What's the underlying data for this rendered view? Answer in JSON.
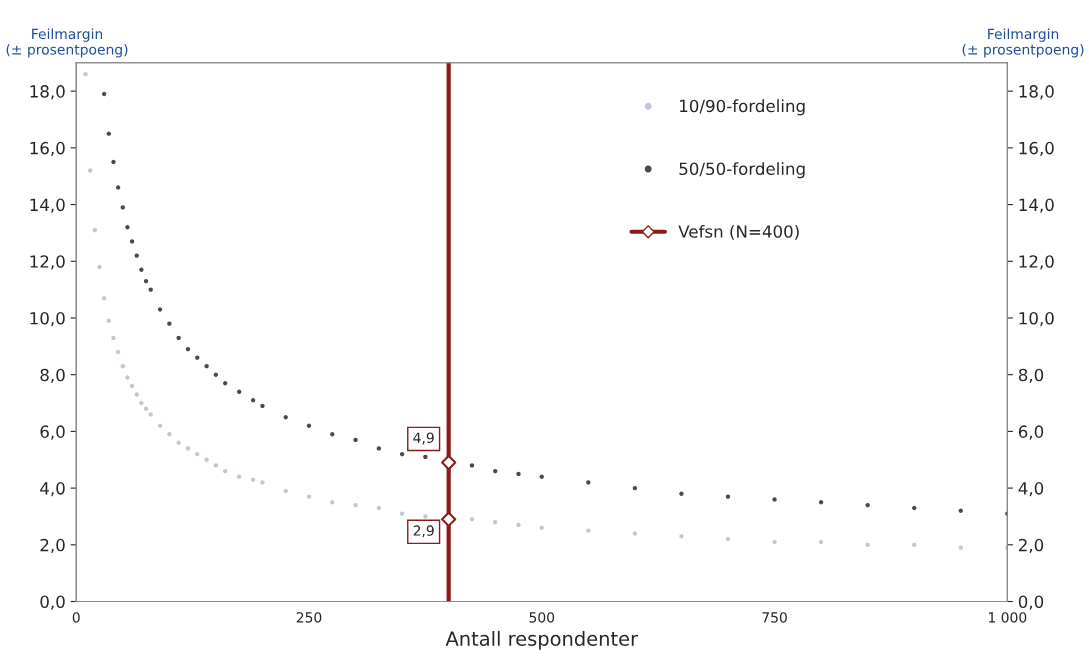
{
  "chart_data": {
    "type": "scatter",
    "xlabel": "Antall respondenter",
    "ylabel": "Feilmargin\n(± prosentpoeng)",
    "y2label": "Feilmargin\n(± prosentpoeng)",
    "xlim": [
      0,
      1000
    ],
    "xticks": [
      0,
      250,
      500,
      750,
      {
        "value": 1000,
        "label": "1 000"
      }
    ],
    "ylim": [
      0,
      19
    ],
    "yticks": [
      {
        "value": 0,
        "label": "0,0"
      },
      {
        "value": 2,
        "label": "2,0"
      },
      {
        "value": 4,
        "label": "4,0"
      },
      {
        "value": 6,
        "label": "6,0"
      },
      {
        "value": 8,
        "label": "8,0"
      },
      {
        "value": 10,
        "label": "10,0"
      },
      {
        "value": 12,
        "label": "12,0"
      },
      {
        "value": 14,
        "label": "14,0"
      },
      {
        "value": 16,
        "label": "16,0"
      },
      {
        "value": 18,
        "label": "18,0"
      }
    ],
    "y2lim": [
      0,
      19
    ],
    "y2ticks": [
      {
        "value": 0,
        "label": "0,0"
      },
      {
        "value": 2,
        "label": "2,0"
      },
      {
        "value": 4,
        "label": "4,0"
      },
      {
        "value": 6,
        "label": "6,0"
      },
      {
        "value": 8,
        "label": "8,0"
      },
      {
        "value": 10,
        "label": "10,0"
      },
      {
        "value": 12,
        "label": "12,0"
      },
      {
        "value": 14,
        "label": "14,0"
      },
      {
        "value": 16,
        "label": "16,0"
      },
      {
        "value": 18,
        "label": "18,0"
      }
    ],
    "grid": false,
    "legend": "top right",
    "marker": "circle",
    "ref_lines": [
      {
        "axis": "x",
        "value": 400,
        "color": "#8b1a1a"
      }
    ],
    "series": [
      {
        "name": "10/90-fordeling",
        "color": "#c4c4da",
        "x": [
          10,
          15,
          20,
          25,
          30,
          35,
          40,
          45,
          50,
          55,
          60,
          65,
          70,
          75,
          80,
          90,
          100,
          110,
          120,
          130,
          140,
          150,
          160,
          175,
          190,
          200,
          225,
          250,
          275,
          300,
          325,
          350,
          375,
          425,
          450,
          475,
          500,
          550,
          600,
          650,
          700,
          750,
          800,
          850,
          900,
          950,
          1000
        ],
        "values": [
          18.6,
          15.2,
          13.1,
          11.8,
          10.7,
          9.9,
          9.3,
          8.8,
          8.3,
          7.9,
          7.6,
          7.3,
          7.0,
          6.8,
          6.6,
          6.2,
          5.9,
          5.6,
          5.4,
          5.2,
          5.0,
          4.8,
          4.6,
          4.4,
          4.3,
          4.2,
          3.9,
          3.7,
          3.5,
          3.4,
          3.3,
          3.1,
          3.0,
          2.9,
          2.8,
          2.7,
          2.6,
          2.5,
          2.4,
          2.3,
          2.2,
          2.1,
          2.1,
          2.0,
          2.0,
          1.9,
          1.9
        ]
      },
      {
        "name": "50/50-fordeling",
        "color": "#4a4a4a",
        "x": [
          30,
          35,
          40,
          45,
          50,
          55,
          60,
          65,
          70,
          75,
          80,
          90,
          100,
          110,
          120,
          130,
          140,
          150,
          160,
          175,
          190,
          200,
          225,
          250,
          275,
          300,
          325,
          350,
          375,
          425,
          450,
          475,
          500,
          550,
          600,
          650,
          700,
          750,
          800,
          850,
          900,
          950,
          1000
        ],
        "values": [
          17.9,
          16.5,
          15.5,
          14.6,
          13.9,
          13.2,
          12.7,
          12.2,
          11.7,
          11.3,
          11.0,
          10.3,
          9.8,
          9.3,
          8.9,
          8.6,
          8.3,
          8.0,
          7.7,
          7.4,
          7.1,
          6.9,
          6.5,
          6.2,
          5.9,
          5.7,
          5.4,
          5.2,
          5.1,
          4.8,
          4.6,
          4.5,
          4.4,
          4.2,
          4.0,
          3.8,
          3.7,
          3.6,
          3.5,
          3.4,
          3.3,
          3.2,
          3.1
        ]
      },
      {
        "name": "Vefsn (N=400)",
        "color": "#8b1a1a",
        "marker": "diamond",
        "x": [
          400,
          400
        ],
        "values": [
          4.9,
          2.9
        ],
        "value_labels": [
          "4,9",
          "2,9"
        ]
      }
    ]
  }
}
